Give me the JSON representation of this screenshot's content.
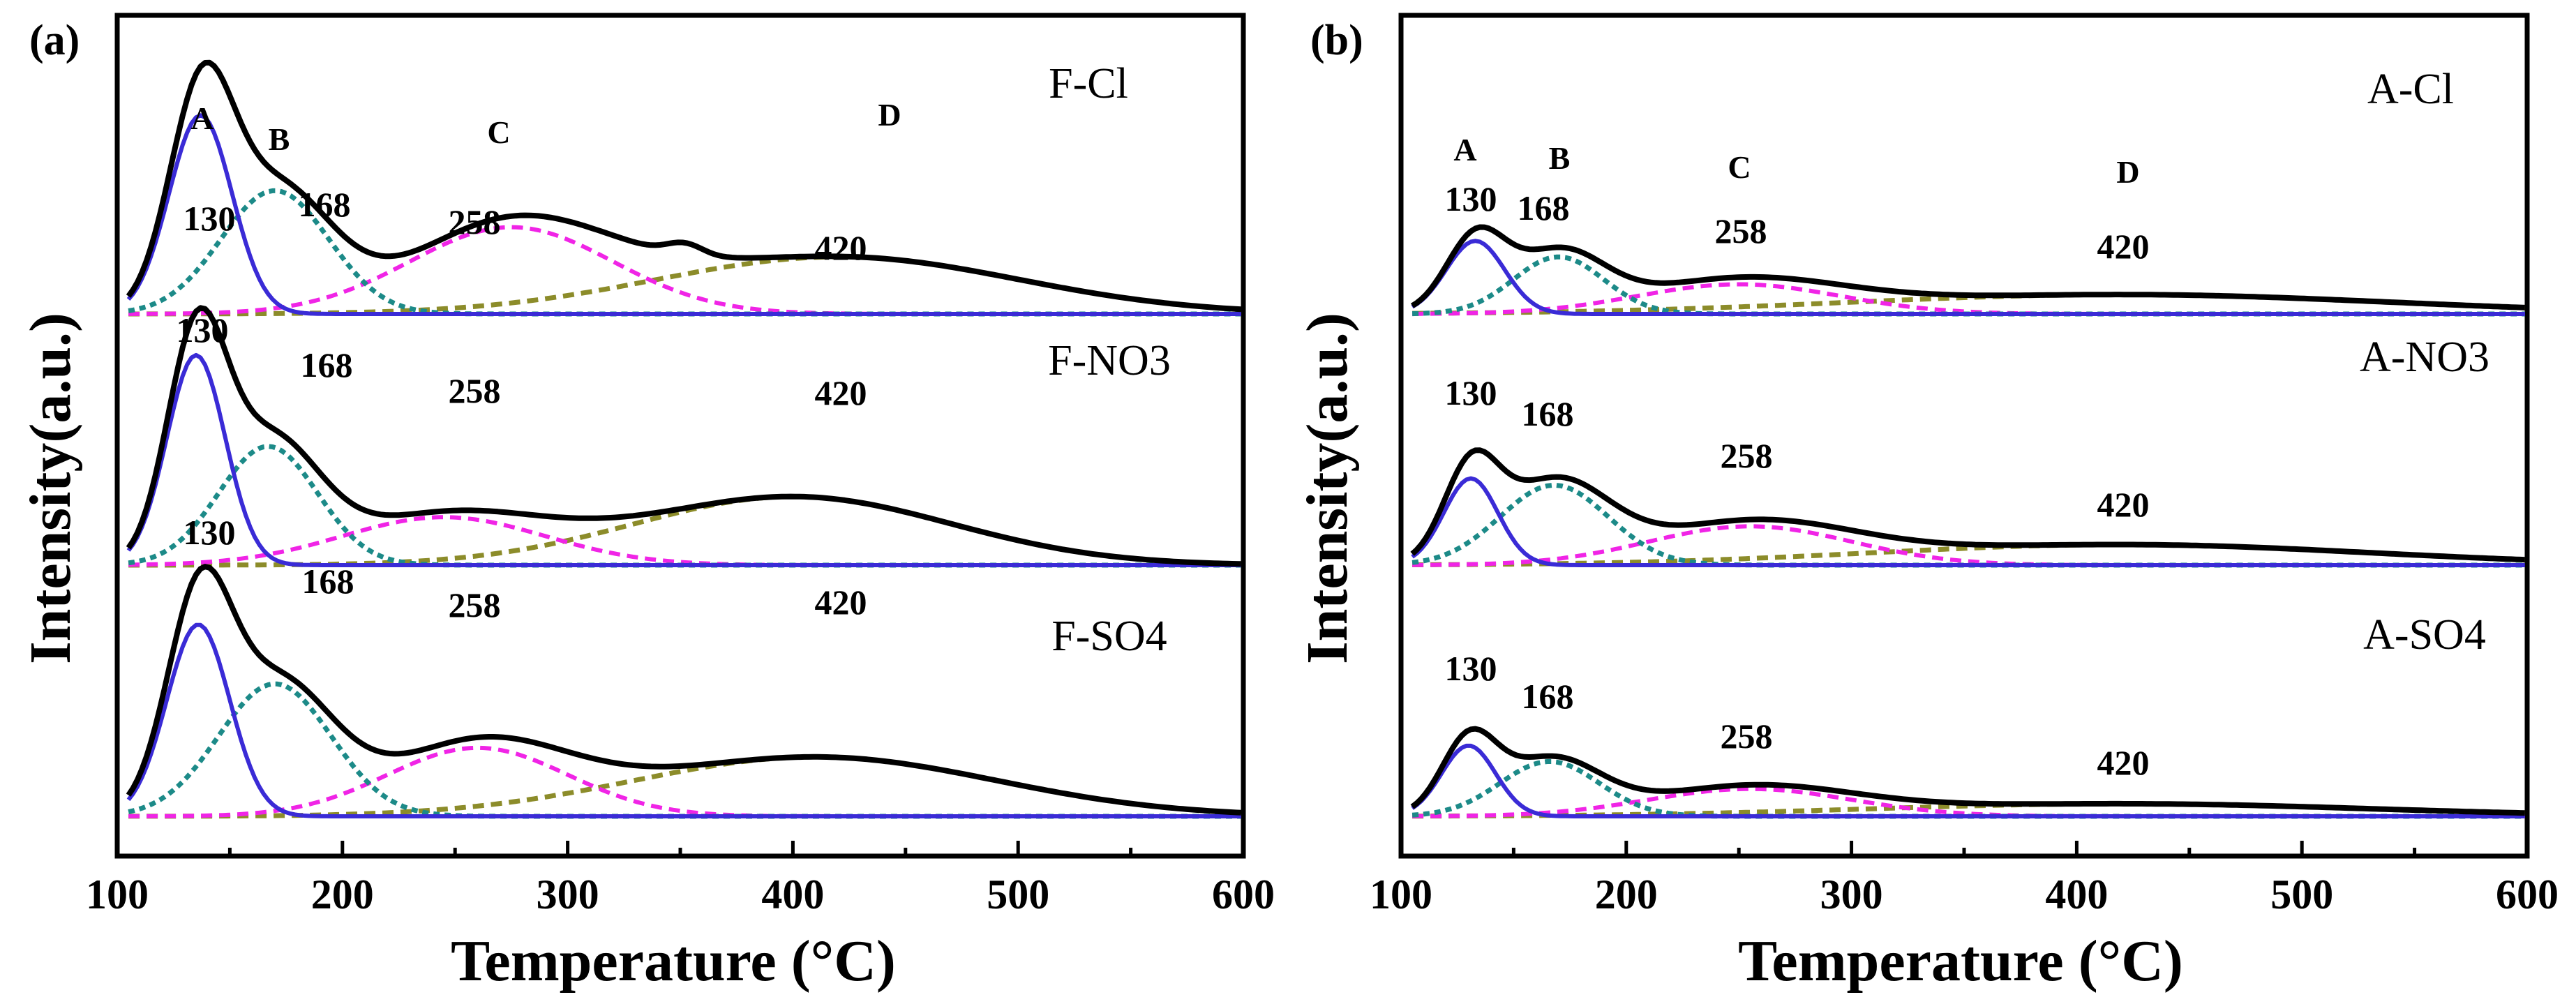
{
  "chart_data": [
    {
      "panel": "(a)",
      "type": "line",
      "xlabel": "Temperature (°C)",
      "ylabel": "Intensity(a.u.)",
      "xlim": [
        100,
        600
      ],
      "xticks": [
        "100",
        "200",
        "300",
        "400",
        "500",
        "600"
      ],
      "ylim": [
        0,
        3.3
      ],
      "colors": {
        "total": "#000000",
        "A": "#3a2bd6",
        "B": "#1c8a88",
        "C": "#f024e6",
        "D": "#8c8c2a"
      },
      "traces": [
        {
          "name": "F-Cl",
          "baseline": 2.2,
          "peak_labels": [
            "130",
            "168",
            "258",
            "420"
          ],
          "region_labels": [
            "A",
            "B",
            "C",
            "D"
          ],
          "components": {
            "A": {
              "center": 137,
              "height": 0.87,
              "width": 14
            },
            "B": {
              "center": 170,
              "height": 0.54,
              "width": 24
            },
            "C": {
              "center": 275,
              "height": 0.38,
              "width": 45
            },
            "D": {
              "center": 420,
              "height": 0.25,
              "width": 80
            }
          },
          "shoulder": {
            "center": 352,
            "height": 0.05,
            "width": 8
          }
        },
        {
          "name": "F-NO3",
          "baseline": 1.1,
          "peak_labels": [
            "130",
            "168",
            "258",
            "420"
          ],
          "components": {
            "A": {
              "center": 135,
              "height": 0.92,
              "width": 13
            },
            "B": {
              "center": 167,
              "height": 0.52,
              "width": 22
            },
            "C": {
              "center": 245,
              "height": 0.21,
              "width": 45
            },
            "D": {
              "center": 400,
              "height": 0.3,
              "width": 70
            }
          }
        },
        {
          "name": "F-SO4",
          "baseline": 0,
          "peak_labels": [
            "130",
            "168",
            "258",
            "420"
          ],
          "components": {
            "A": {
              "center": 136,
              "height": 0.84,
              "width": 14
            },
            "B": {
              "center": 170,
              "height": 0.58,
              "width": 25
            },
            "C": {
              "center": 260,
              "height": 0.3,
              "width": 40
            },
            "D": {
              "center": 410,
              "height": 0.26,
              "width": 80
            }
          }
        }
      ]
    },
    {
      "panel": "(b)",
      "type": "line",
      "xlabel": "Temperature (°C)",
      "ylabel": "Intensity(a.u.)",
      "xlim": [
        100,
        600
      ],
      "xticks": [
        "100",
        "200",
        "300",
        "400",
        "500",
        "600"
      ],
      "ylim": [
        0,
        3.3
      ],
      "colors": {
        "total": "#000000",
        "A": "#3a2bd6",
        "B": "#1c8a88",
        "C": "#f024e6",
        "D": "#8c8c2a"
      },
      "traces": [
        {
          "name": "A-Cl",
          "baseline": 2.2,
          "peak_labels": [
            "130",
            "168",
            "258",
            "420"
          ],
          "region_labels": [
            "A",
            "B",
            "C",
            "D"
          ],
          "components": {
            "A": {
              "center": 133,
              "height": 0.32,
              "width": 13
            },
            "B": {
              "center": 170,
              "height": 0.25,
              "width": 20
            },
            "C": {
              "center": 250,
              "height": 0.13,
              "width": 45
            },
            "D": {
              "center": 420,
              "height": 0.085,
              "width": 120
            }
          }
        },
        {
          "name": "A-NO3",
          "baseline": 1.1,
          "peak_labels": [
            "130",
            "168",
            "258",
            "420"
          ],
          "components": {
            "A": {
              "center": 131,
              "height": 0.38,
              "width": 12
            },
            "B": {
              "center": 168,
              "height": 0.35,
              "width": 24
            },
            "C": {
              "center": 255,
              "height": 0.17,
              "width": 45
            },
            "D": {
              "center": 420,
              "height": 0.09,
              "width": 110
            }
          }
        },
        {
          "name": "A-SO4",
          "baseline": 0,
          "peak_labels": [
            "130",
            "168",
            "258",
            "420"
          ],
          "components": {
            "A": {
              "center": 130,
              "height": 0.31,
              "width": 12
            },
            "B": {
              "center": 166,
              "height": 0.24,
              "width": 22
            },
            "C": {
              "center": 255,
              "height": 0.12,
              "width": 45
            },
            "D": {
              "center": 420,
              "height": 0.055,
              "width": 110
            }
          }
        }
      ]
    }
  ]
}
